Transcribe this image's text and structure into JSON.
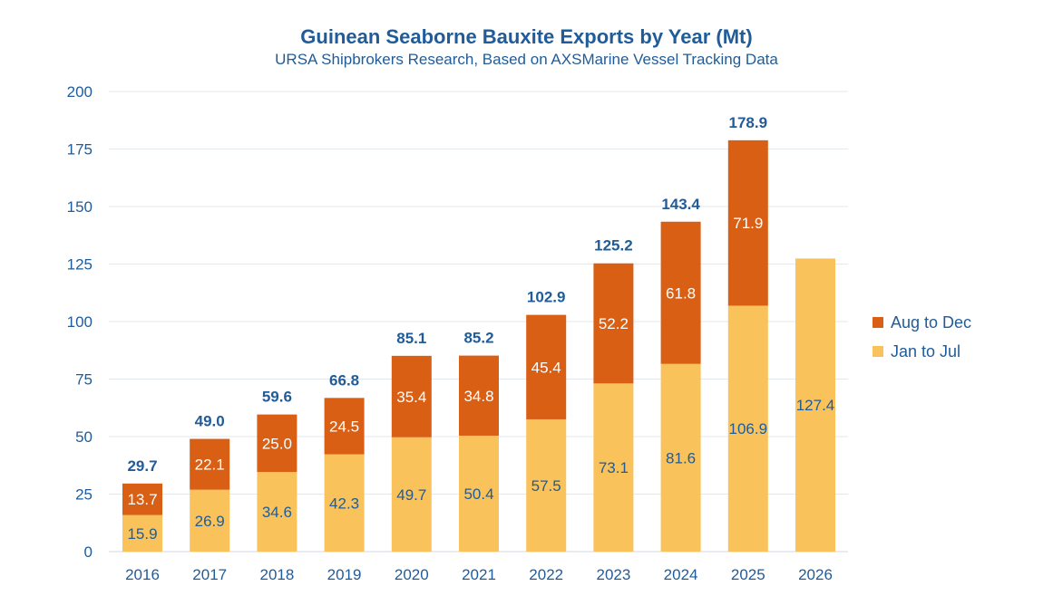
{
  "chart_data": {
    "type": "bar",
    "stacked": true,
    "title": "Guinean Seaborne Bauxite Exports by Year (Mt)",
    "subtitle": "URSA Shipbrokers Research, Based on AXSMarine Vessel Tracking Data",
    "categories": [
      "2016",
      "2017",
      "2018",
      "2019",
      "2020",
      "2021",
      "2022",
      "2023",
      "2024",
      "2025",
      "2026"
    ],
    "series": [
      {
        "name": "Jan to Jul",
        "color": "#f9c25a",
        "values": [
          15.9,
          26.9,
          34.6,
          42.3,
          49.7,
          50.4,
          57.5,
          73.1,
          81.6,
          106.9,
          127.4
        ],
        "labels": [
          "15.9",
          "26.9",
          "34.6",
          "42.3",
          "49.7",
          "50.4",
          "57.5",
          "73.1",
          "81.6",
          "106.9",
          "127.4"
        ]
      },
      {
        "name": "Aug to Dec",
        "color": "#d95f14",
        "values": [
          13.7,
          22.1,
          25.0,
          24.5,
          35.4,
          34.8,
          45.4,
          52.2,
          61.8,
          71.9,
          null
        ],
        "labels": [
          "13.7",
          "22.1",
          "25.0",
          "24.5",
          "35.4",
          "34.8",
          "45.4",
          "52.2",
          "61.8",
          "71.9",
          ""
        ]
      }
    ],
    "totals": [
      "29.7",
      "49.0",
      "59.6",
      "66.8",
      "85.1",
      "85.2",
      "102.9",
      "125.2",
      "143.4",
      "178.9",
      ""
    ],
    "yticks": [
      "0",
      "25",
      "50",
      "75",
      "100",
      "125",
      "150",
      "175",
      "200"
    ],
    "ylim": [
      0,
      200
    ],
    "grid": true,
    "legend_position": "right",
    "xlabel": "",
    "ylabel": ""
  }
}
